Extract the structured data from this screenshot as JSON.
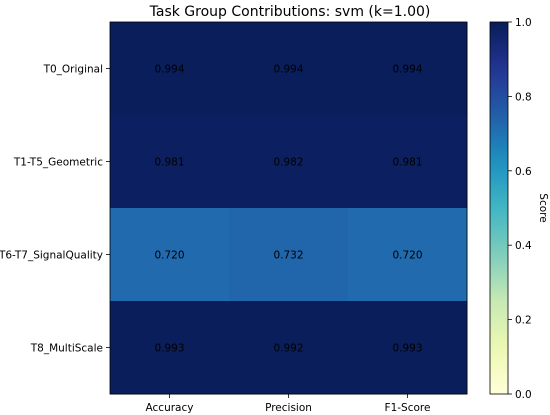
{
  "chart_data": {
    "type": "heatmap",
    "title": "Task Group Contributions: svm (k=1.00)",
    "rows": [
      "T0_Original",
      "T1-T5_Geometric",
      "T6-T7_SignalQuality",
      "T8_MultiScale"
    ],
    "columns": [
      "Accuracy",
      "Precision",
      "F1-Score"
    ],
    "values": [
      [
        0.994,
        0.994,
        0.994
      ],
      [
        0.981,
        0.982,
        0.981
      ],
      [
        0.72,
        0.732,
        0.72
      ],
      [
        0.993,
        0.992,
        0.993
      ]
    ],
    "cell_labels": [
      [
        "0.994",
        "0.994",
        "0.994"
      ],
      [
        "0.981",
        "0.982",
        "0.981"
      ],
      [
        "0.720",
        "0.732",
        "0.720"
      ],
      [
        "0.993",
        "0.992",
        "0.993"
      ]
    ],
    "colormap": "YlGnBu",
    "vmin": 0.0,
    "vmax": 1.0,
    "colorbar": {
      "label": "Score",
      "ticks": [
        0.0,
        0.2,
        0.4,
        0.6,
        0.8,
        1.0
      ],
      "tick_labels": [
        "0.0",
        "0.2",
        "0.4",
        "0.6",
        "0.8",
        "1.0"
      ]
    }
  }
}
